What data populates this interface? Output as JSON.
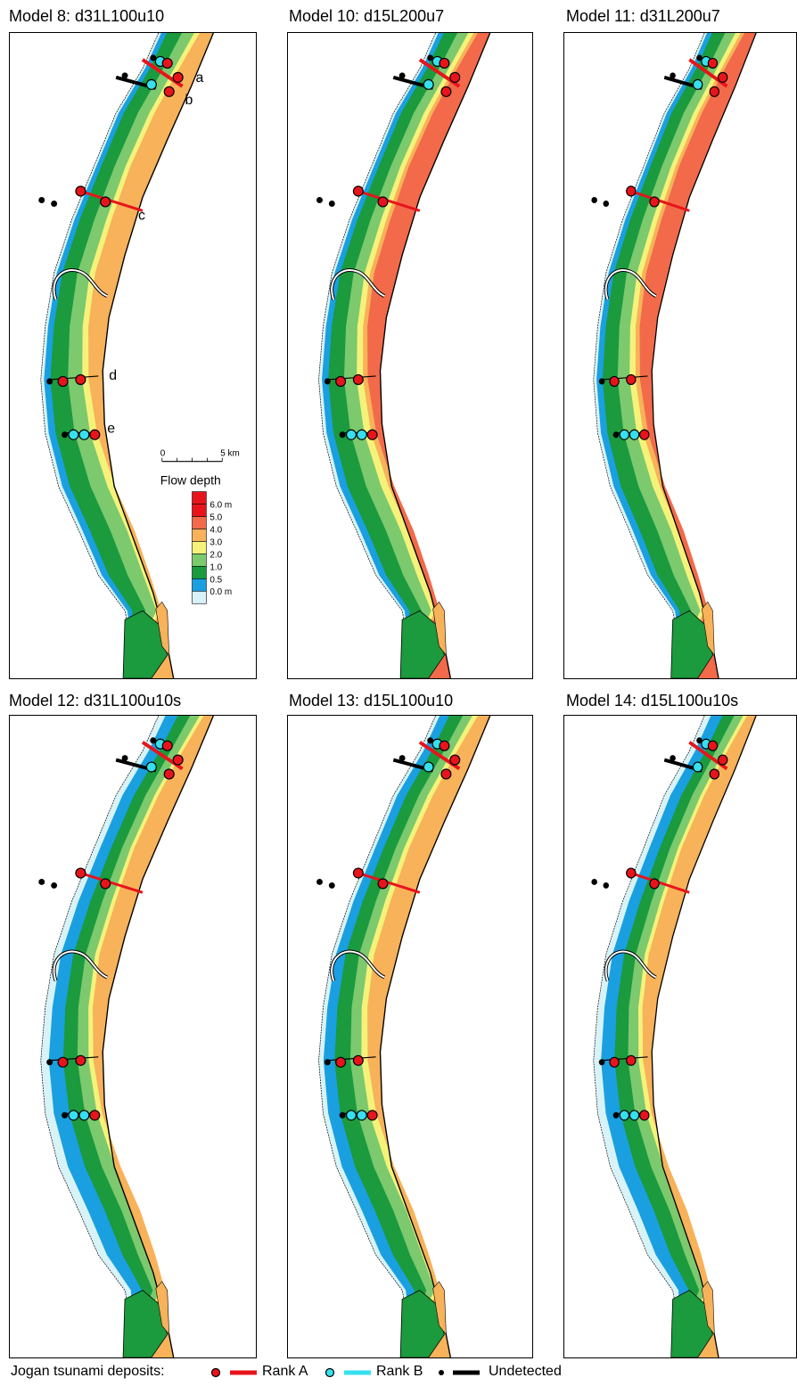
{
  "panels": [
    {
      "title": "Model 8: d31L100u10",
      "variant": "deep",
      "annotated": true
    },
    {
      "title": "Model 10: d15L200u7",
      "variant": "deeper",
      "annotated": false
    },
    {
      "title": "Model 11: d31L200u7",
      "variant": "deeper",
      "annotated": false
    },
    {
      "title": "Model 12: d31L100u10s",
      "variant": "shallow",
      "annotated": false
    },
    {
      "title": "Model 13: d15L100u10",
      "variant": "medium",
      "annotated": false
    },
    {
      "title": "Model 14: d15L100u10s",
      "variant": "shallow",
      "annotated": false
    }
  ],
  "site_labels": [
    "a",
    "b",
    "c",
    "d",
    "e"
  ],
  "scale_bar": {
    "start": "0",
    "end": "5 km"
  },
  "depth_legend": {
    "title": "Flow depth",
    "levels": [
      {
        "label": "6.0 m",
        "color": "#e8141b"
      },
      {
        "label": "5.0",
        "color": "#f26a4a"
      },
      {
        "label": "4.0",
        "color": "#f7b25a"
      },
      {
        "label": "3.0",
        "color": "#f5f27a"
      },
      {
        "label": "2.0",
        "color": "#7cc96e"
      },
      {
        "label": "1.0",
        "color": "#1b9a3e"
      },
      {
        "label": "0.5",
        "color": "#1aa0e0"
      },
      {
        "label": "0.0 m",
        "color": "#d8f3f8"
      }
    ],
    "top_color": "#e8141b"
  },
  "deposit_legend": {
    "title": "Jogan tsunami deposits:",
    "rank_a": "Rank A",
    "rank_b": "Rank B",
    "undetected": "Undetected",
    "colors": {
      "rank_a": "#e8141b",
      "rank_b": "#36e0ee",
      "undetected": "#000000"
    }
  }
}
